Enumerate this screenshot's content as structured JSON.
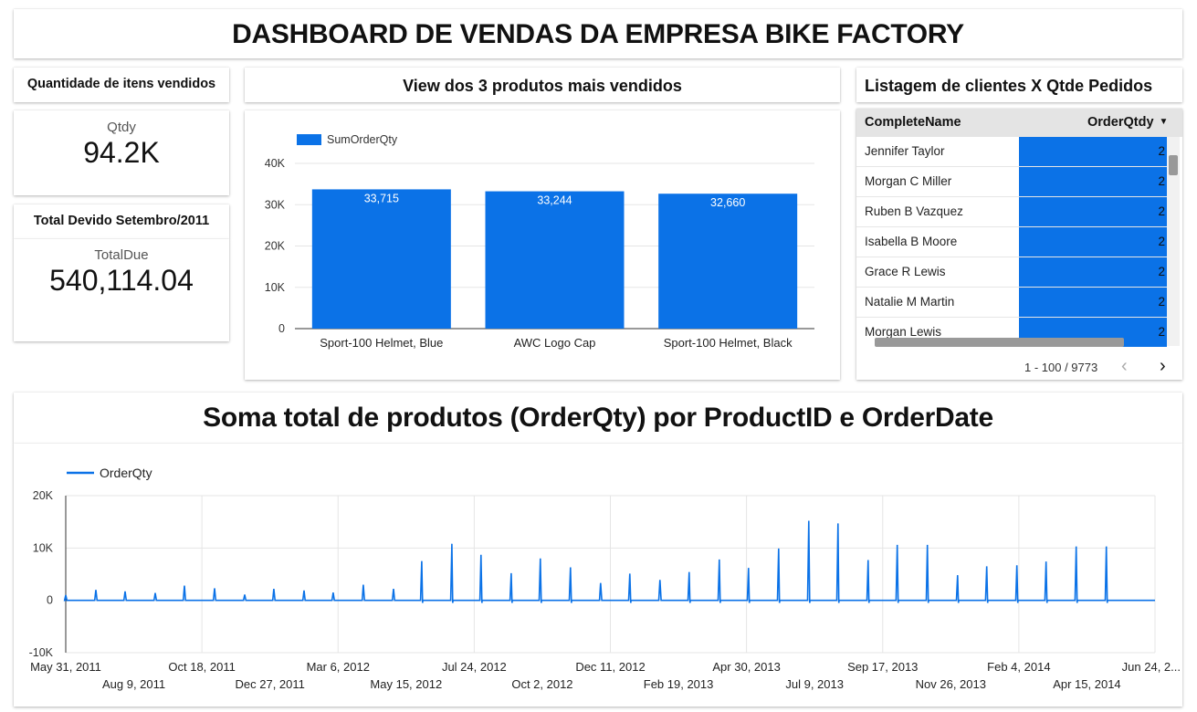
{
  "header": {
    "title": "DASHBOARD DE VENDAS DA EMPRESA BIKE FACTORY"
  },
  "kpi_qty": {
    "title": "Quantidade de itens vendidos",
    "label": "Qtdy",
    "value": "94.2K"
  },
  "kpi_total": {
    "title": "Total Devido Setembro/2011",
    "label": "TotalDue",
    "value": "540,114.04"
  },
  "colors": {
    "accent": "#0b72e7",
    "grid": "#e5e5e5",
    "axis": "#333333"
  },
  "client_table": {
    "title": "Listagem de clientes X Qtde Pedidos",
    "col_name": "CompleteName",
    "col_qty": "OrderQtdy",
    "sort_icon": "▼",
    "rows": [
      {
        "name": "Jennifer Taylor",
        "qty": "2"
      },
      {
        "name": "Morgan C Miller",
        "qty": "2"
      },
      {
        "name": "Ruben B Vazquez",
        "qty": "2"
      },
      {
        "name": "Isabella B Moore",
        "qty": "2"
      },
      {
        "name": "Grace R Lewis",
        "qty": "2"
      },
      {
        "name": "Natalie M Martin",
        "qty": "2"
      },
      {
        "name": "Morgan Lewis",
        "qty": "2"
      }
    ],
    "pagination": "1 - 100 / 9773",
    "prev_icon": "‹",
    "next_icon": "›"
  },
  "chart_data": [
    {
      "type": "bar",
      "title": "View dos 3 produtos mais vendidos",
      "legend": "SumOrderQty",
      "legend_position": "top-left",
      "categories": [
        "Sport-100 Helmet, Blue",
        "AWC Logo Cap",
        "Sport-100 Helmet, Black"
      ],
      "values": [
        33715,
        33244,
        32660
      ],
      "value_labels": [
        "33,715",
        "33,244",
        "32,660"
      ],
      "ylim": [
        0,
        40000
      ],
      "yticks": [
        0,
        10000,
        20000,
        30000,
        40000
      ],
      "ytick_labels": [
        "0",
        "10K",
        "20K",
        "30K",
        "40K"
      ],
      "grid": true
    },
    {
      "type": "line",
      "title": "Soma total de produtos (OrderQty) por ProductID e OrderDate",
      "legend": "OrderQty",
      "legend_position": "top-left",
      "ylim": [
        -10000,
        20000
      ],
      "yticks": [
        -10000,
        0,
        10000,
        20000
      ],
      "ytick_labels": [
        "-10K",
        "0",
        "10K",
        "20K"
      ],
      "xlim": [
        0,
        1120
      ],
      "xtick_days": [
        0,
        70,
        140,
        210,
        280,
        350,
        420,
        490,
        560,
        630,
        700,
        770,
        840,
        910,
        980,
        1050,
        1120
      ],
      "xtick_labels": [
        "May 31, 2011",
        "Aug 9, 2011",
        "Oct 18, 2011",
        "Dec 27, 2011",
        "Mar 6, 2012",
        "May 15, 2012",
        "Jul 24, 2012",
        "Oct 2, 2012",
        "Dec 11, 2012",
        "Feb 19, 2013",
        "Apr 30, 2013",
        "Jul 9, 2013",
        "Sep 17, 2013",
        "Nov 26, 2013",
        "Feb 4, 2014",
        "Apr 15, 2014",
        "Jun 24, 2..."
      ],
      "spikes": [
        {
          "day": 0,
          "value": 1000
        },
        {
          "day": 31,
          "value": 2000
        },
        {
          "day": 61,
          "value": 1700
        },
        {
          "day": 92,
          "value": 1400
        },
        {
          "day": 122,
          "value": 2800
        },
        {
          "day": 153,
          "value": 2300
        },
        {
          "day": 184,
          "value": 1100
        },
        {
          "day": 214,
          "value": 2200
        },
        {
          "day": 245,
          "value": 1900
        },
        {
          "day": 275,
          "value": 1500
        },
        {
          "day": 306,
          "value": 3000
        },
        {
          "day": 337,
          "value": 2200
        },
        {
          "day": 366,
          "value": 7500
        },
        {
          "day": 397,
          "value": 10800
        },
        {
          "day": 427,
          "value": 8700
        },
        {
          "day": 458,
          "value": 5200
        },
        {
          "day": 488,
          "value": 8000
        },
        {
          "day": 519,
          "value": 6300
        },
        {
          "day": 550,
          "value": 3300
        },
        {
          "day": 580,
          "value": 5100
        },
        {
          "day": 611,
          "value": 3900
        },
        {
          "day": 641,
          "value": 5400
        },
        {
          "day": 672,
          "value": 7800
        },
        {
          "day": 702,
          "value": 6200
        },
        {
          "day": 733,
          "value": 9900
        },
        {
          "day": 764,
          "value": 15200
        },
        {
          "day": 794,
          "value": 14700
        },
        {
          "day": 825,
          "value": 7700
        },
        {
          "day": 855,
          "value": 10600
        },
        {
          "day": 886,
          "value": 10600
        },
        {
          "day": 917,
          "value": 4800
        },
        {
          "day": 947,
          "value": 6500
        },
        {
          "day": 978,
          "value": 6700
        },
        {
          "day": 1008,
          "value": 7400
        },
        {
          "day": 1039,
          "value": 10300
        },
        {
          "day": 1070,
          "value": 10300
        }
      ],
      "grid": true
    }
  ]
}
